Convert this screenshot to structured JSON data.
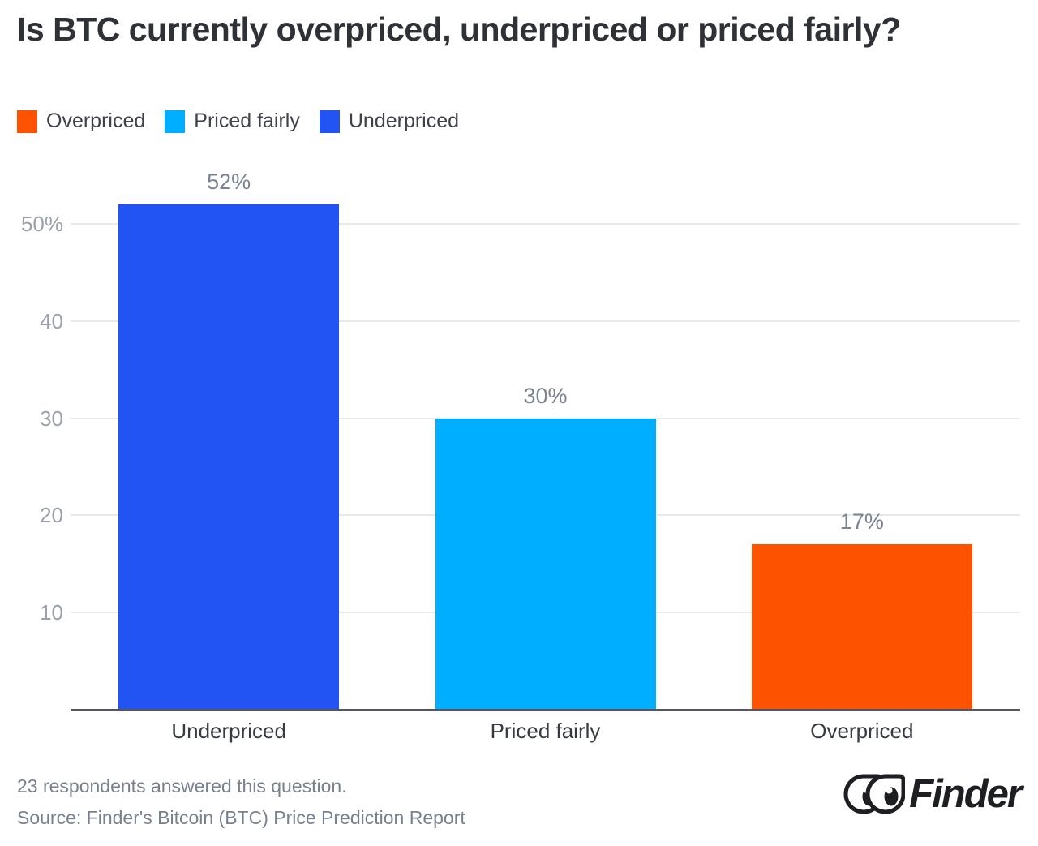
{
  "title": "Is BTC currently overpriced, underpriced or priced fairly?",
  "legend": [
    {
      "label": "Overpriced",
      "color": "#fd5200"
    },
    {
      "label": "Priced fairly",
      "color": "#00aeff"
    },
    {
      "label": "Underpriced",
      "color": "#2154f3"
    }
  ],
  "chart_data": {
    "type": "bar",
    "categories": [
      "Underpriced",
      "Priced fairly",
      "Overpriced"
    ],
    "values": [
      52,
      30,
      17
    ],
    "value_labels": [
      "52%",
      "30%",
      "17%"
    ],
    "bar_colors": [
      "#2154f3",
      "#00aeff",
      "#fd5200"
    ],
    "title": "Is BTC currently overpriced, underpriced or priced fairly?",
    "xlabel": "",
    "ylabel": "",
    "ylim": [
      0,
      53
    ],
    "yticks": [
      {
        "value": 10,
        "label": "10"
      },
      {
        "value": 20,
        "label": "20"
      },
      {
        "value": 30,
        "label": "30"
      },
      {
        "value": 40,
        "label": "40"
      },
      {
        "value": 50,
        "label": "50%"
      }
    ],
    "grid": true,
    "legend_position": "top-left"
  },
  "footer": {
    "note": "23 respondents answered this question.",
    "source": "Source: Finder's Bitcoin (BTC) Price Prediction Report",
    "brand": "Finder",
    "brand_color": "#1d1f23"
  }
}
